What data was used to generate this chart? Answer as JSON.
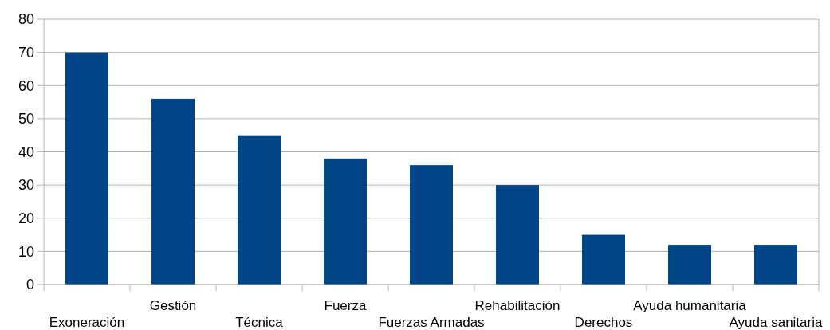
{
  "chart_data": {
    "type": "bar",
    "categories": [
      "Exoneración",
      "Gestión",
      "Técnica",
      "Fuerza",
      "Fuerzas Armadas",
      "Rehabilitación",
      "Derechos",
      "Ayuda humanitaria",
      "Ayuda sanitaria"
    ],
    "values": [
      70,
      56,
      45,
      38,
      36,
      30,
      15,
      12,
      12
    ],
    "color": "#004586",
    "ylim": [
      0,
      80
    ],
    "yticks": [
      0,
      10,
      20,
      30,
      40,
      50,
      60,
      70,
      80
    ],
    "grid": "y"
  }
}
